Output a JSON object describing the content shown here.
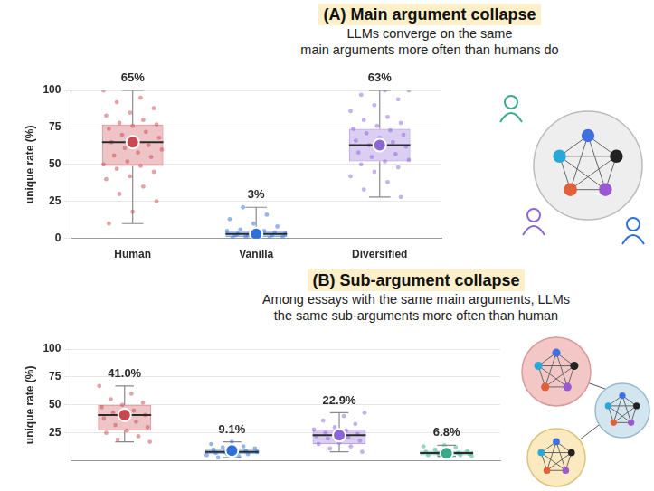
{
  "chart_data": [
    {
      "type": "box",
      "title": "(A) Main argument collapse",
      "subtitle": [
        "LLMs converge on the same",
        "main arguments more often than humans do"
      ],
      "y_label": "unique rate (%)",
      "categories": [
        "Human",
        "Vanilla",
        "Diversified"
      ],
      "colors": [
        "#c9474f",
        "#2f6fd8",
        "#8b66d6"
      ],
      "values": [
        65,
        3,
        63
      ],
      "value_labels": [
        "65%",
        "3%",
        "63%"
      ],
      "data_labels": true,
      "median": [
        65,
        3,
        63
      ],
      "q1": [
        49,
        1,
        52
      ],
      "q3": [
        77,
        5,
        74
      ],
      "whisker_low": [
        10,
        0,
        28
      ],
      "whisker_high": [
        100,
        21,
        100
      ],
      "points": [
        [
          100,
          95,
          92,
          88,
          85,
          83,
          80,
          78,
          77,
          76,
          74,
          72,
          70,
          68,
          66,
          65,
          63,
          61,
          60,
          58,
          56,
          55,
          52,
          50,
          49,
          47,
          45,
          42,
          40,
          35,
          30,
          25,
          18,
          10
        ],
        [
          0,
          0,
          0,
          1,
          1,
          1,
          2,
          2,
          2,
          3,
          3,
          3,
          4,
          4,
          5,
          5,
          6,
          8,
          10,
          13,
          16,
          21
        ],
        [
          100,
          100,
          97,
          94,
          90,
          86,
          82,
          80,
          78,
          76,
          74,
          73,
          71,
          70,
          68,
          66,
          65,
          63,
          62,
          60,
          58,
          57,
          55,
          53,
          52,
          50,
          48,
          45,
          42,
          38,
          33,
          28
        ]
      ],
      "ylim": [
        0,
        100
      ],
      "yticks": [
        0,
        25,
        50,
        75,
        100
      ],
      "grid": true
    },
    {
      "type": "box",
      "title": "(B) Sub-argument collapse",
      "subtitle": [
        "Among essays with the same main arguments, LLMs",
        "the same sub-arguments more often than human"
      ],
      "y_label": "unique rate (%)",
      "categories": [
        null,
        null,
        null,
        null
      ],
      "colors": [
        "#c9474f",
        "#2f6fd8",
        "#8b66d6",
        "#3aa98a"
      ],
      "values": [
        41.0,
        9.1,
        22.9,
        6.8
      ],
      "value_labels": [
        "41.0%",
        "9.1%",
        "22.9%",
        "6.8%"
      ],
      "data_labels": true,
      "median": [
        41,
        8,
        23,
        7
      ],
      "q1": [
        27,
        6,
        15,
        5
      ],
      "q3": [
        50,
        10,
        28,
        9
      ],
      "whisker_low": [
        17,
        3,
        8,
        4
      ],
      "whisker_high": [
        67,
        17,
        43,
        14
      ],
      "points": [
        [
          67,
          60,
          55,
          52,
          50,
          48,
          45,
          43,
          41,
          40,
          38,
          35,
          32,
          30,
          27,
          25,
          22,
          19,
          17
        ],
        [
          17,
          15,
          13,
          12,
          11,
          10,
          10,
          9,
          8,
          8,
          7,
          7,
          6,
          6,
          5,
          4,
          3
        ],
        [
          43,
          40,
          36,
          33,
          30,
          28,
          27,
          25,
          24,
          23,
          22,
          21,
          20,
          18,
          16,
          15,
          13,
          11,
          8
        ],
        [
          14,
          13,
          12,
          10,
          9,
          8,
          8,
          7,
          7,
          6,
          6,
          5,
          5,
          5,
          4,
          4
        ]
      ],
      "ylim": [
        0,
        100
      ],
      "yticks": [
        25,
        50,
        75,
        100
      ],
      "grid": true
    }
  ]
}
